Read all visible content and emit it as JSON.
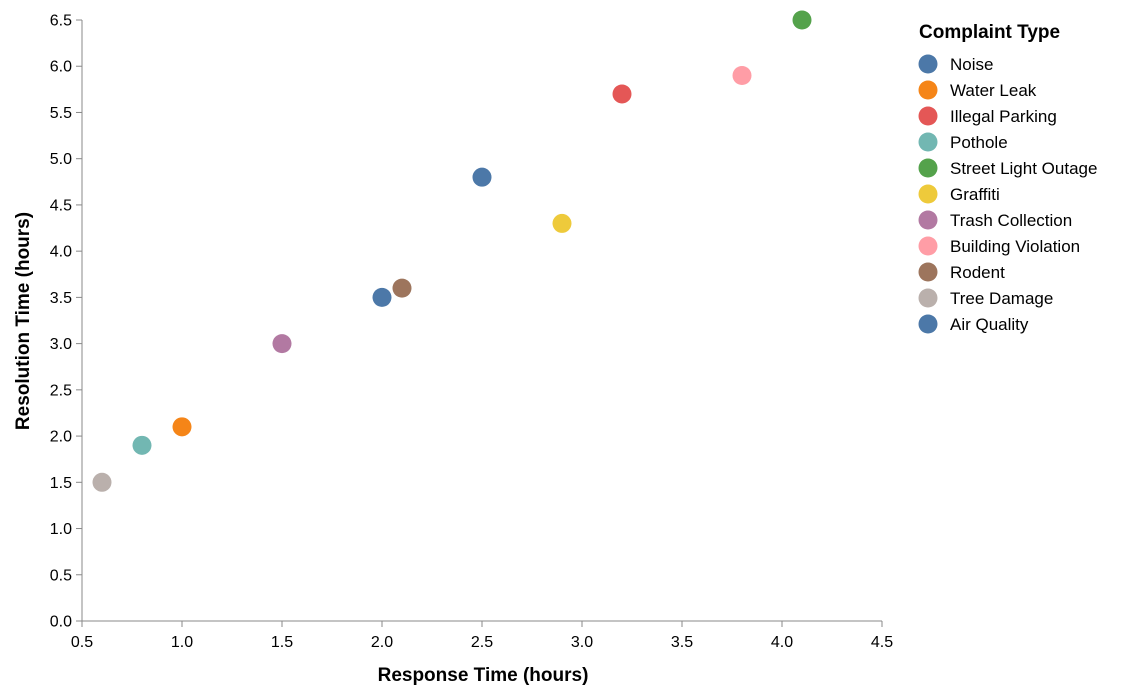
{
  "chart_data": {
    "type": "scatter",
    "xlabel": "Response Time (hours)",
    "ylabel": "Resolution Time (hours)",
    "xlim": [
      0.5,
      4.5
    ],
    "ylim": [
      0.0,
      6.5
    ],
    "x_ticks": [
      "0.5",
      "1.0",
      "1.5",
      "2.0",
      "2.5",
      "3.0",
      "3.5",
      "4.0",
      "4.5"
    ],
    "y_ticks": [
      "0.0",
      "0.5",
      "1.0",
      "1.5",
      "2.0",
      "2.5",
      "3.0",
      "3.5",
      "4.0",
      "4.5",
      "5.0",
      "5.5",
      "6.0",
      "6.5"
    ],
    "grid": false,
    "legend": {
      "title": "Complaint Type",
      "placement": "right",
      "entries": [
        {
          "name": "Noise",
          "color": "#4c78a8"
        },
        {
          "name": "Water Leak",
          "color": "#f58518"
        },
        {
          "name": "Illegal Parking",
          "color": "#e45756"
        },
        {
          "name": "Pothole",
          "color": "#72b7b2"
        },
        {
          "name": "Street Light Outage",
          "color": "#54a24b"
        },
        {
          "name": "Graffiti",
          "color": "#eeca3b"
        },
        {
          "name": "Trash Collection",
          "color": "#b279a2"
        },
        {
          "name": "Building Violation",
          "color": "#ff9da6"
        },
        {
          "name": "Rodent",
          "color": "#9d755d"
        },
        {
          "name": "Tree Damage",
          "color": "#bab0ac"
        },
        {
          "name": "Air Quality",
          "color": "#4c78a8"
        }
      ]
    },
    "points": [
      {
        "type": "Noise",
        "x": 2.5,
        "y": 4.8
      },
      {
        "type": "Water Leak",
        "x": 1.0,
        "y": 2.1
      },
      {
        "type": "Illegal Parking",
        "x": 3.2,
        "y": 5.7
      },
      {
        "type": "Pothole",
        "x": 0.8,
        "y": 1.9
      },
      {
        "type": "Street Light Outage",
        "x": 4.1,
        "y": 6.5
      },
      {
        "type": "Graffiti",
        "x": 2.9,
        "y": 4.3
      },
      {
        "type": "Trash Collection",
        "x": 1.5,
        "y": 3.0
      },
      {
        "type": "Building Violation",
        "x": 3.8,
        "y": 5.9
      },
      {
        "type": "Rodent",
        "x": 2.1,
        "y": 3.6
      },
      {
        "type": "Tree Damage",
        "x": 0.6,
        "y": 1.5
      },
      {
        "type": "Air Quality",
        "x": 2.0,
        "y": 3.5
      }
    ]
  }
}
